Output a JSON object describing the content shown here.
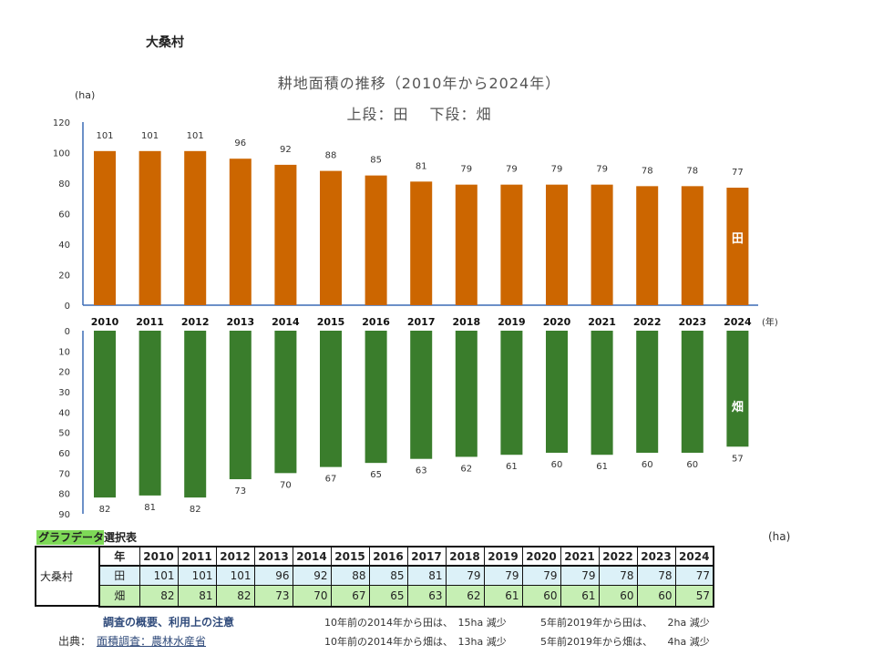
{
  "village_name": "大桑村",
  "chart_data": {
    "type": "bar",
    "title": "耕地面積の推移（2010年から2024年）",
    "subtitle": "上段：田　 下段：畑",
    "ylabel": "(ha)",
    "xlabel": "(年)",
    "categories": [
      "2010",
      "2011",
      "2012",
      "2013",
      "2014",
      "2015",
      "2016",
      "2017",
      "2018",
      "2019",
      "2020",
      "2021",
      "2022",
      "2023",
      "2024"
    ],
    "series": [
      {
        "name": "田",
        "values": [
          101,
          101,
          101,
          96,
          92,
          88,
          85,
          81,
          79,
          79,
          79,
          79,
          78,
          78,
          77
        ],
        "color": "#cc6600"
      },
      {
        "name": "畑",
        "values": [
          82,
          81,
          82,
          73,
          70,
          67,
          65,
          63,
          62,
          61,
          60,
          61,
          60,
          60,
          57
        ],
        "color": "#3a7d2c"
      }
    ],
    "upper_ylim": [
      0,
      120
    ],
    "upper_ticks": [
      "0",
      "20",
      "40",
      "60",
      "80",
      "100",
      "120"
    ],
    "lower_ylim": [
      0,
      90
    ],
    "lower_ticks": [
      "0",
      "10",
      "20",
      "30",
      "40",
      "50",
      "60",
      "70",
      "80",
      "90"
    ],
    "grid": false
  },
  "table": {
    "title_highlight": "グラフデータ",
    "title_rest": "選択表",
    "unit": "(ha)",
    "row_group_label": "大桑村",
    "header_label": "年",
    "rows": [
      {
        "label": "田",
        "values": [
          "101",
          "101",
          "101",
          "96",
          "92",
          "88",
          "85",
          "81",
          "79",
          "79",
          "79",
          "79",
          "78",
          "78",
          "77"
        ]
      },
      {
        "label": "畑",
        "values": [
          "82",
          "81",
          "82",
          "73",
          "70",
          "67",
          "65",
          "63",
          "62",
          "61",
          "60",
          "61",
          "60",
          "60",
          "57"
        ]
      }
    ]
  },
  "footer": {
    "notes_link": "調査の概要、利用上の注意",
    "source_label": "出典：",
    "source_link": "面積調査：農林水産省",
    "info": [
      "10年前の2014年から田は、　15ha 減少",
      "5年前2019年から田は、　　2ha 減少",
      "10年前の2014年から畑は、　13ha 減少",
      "5年前2019年から畑は、　　4ha 減少"
    ]
  }
}
